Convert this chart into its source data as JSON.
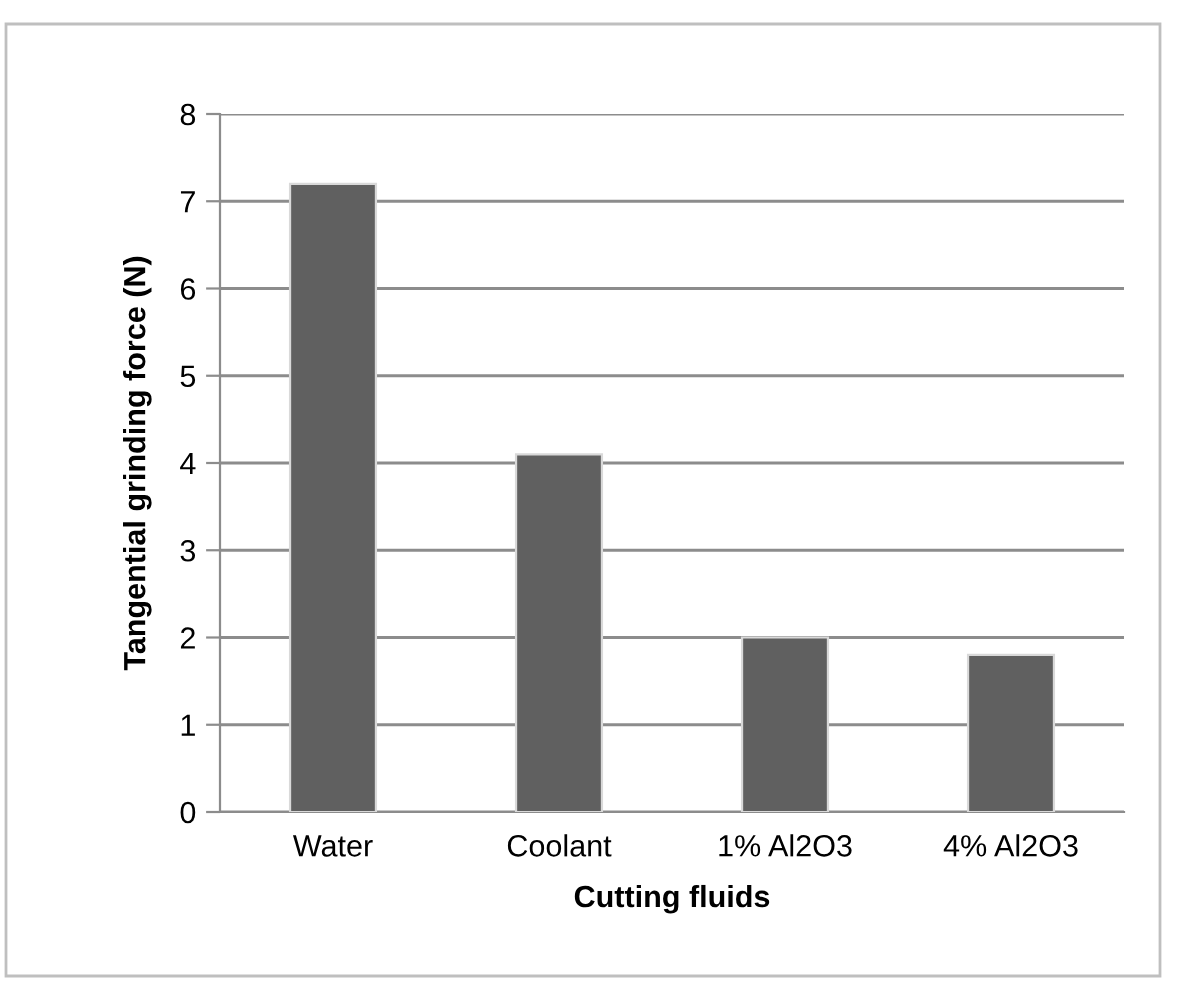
{
  "chart_data": {
    "type": "bar",
    "xlabel": "Cutting fluids",
    "ylabel": "Tangential grinding force (N)",
    "categories": [
      "Water",
      "Coolant",
      "1% Al2O3",
      "4% Al2O3"
    ],
    "values": [
      7.2,
      4.1,
      2.0,
      1.8
    ],
    "color": "#606060",
    "ylim": [
      0,
      8
    ],
    "yticks": [
      0,
      1,
      2,
      3,
      4,
      5,
      6,
      7,
      8
    ],
    "grid": "y",
    "legend": false
  }
}
